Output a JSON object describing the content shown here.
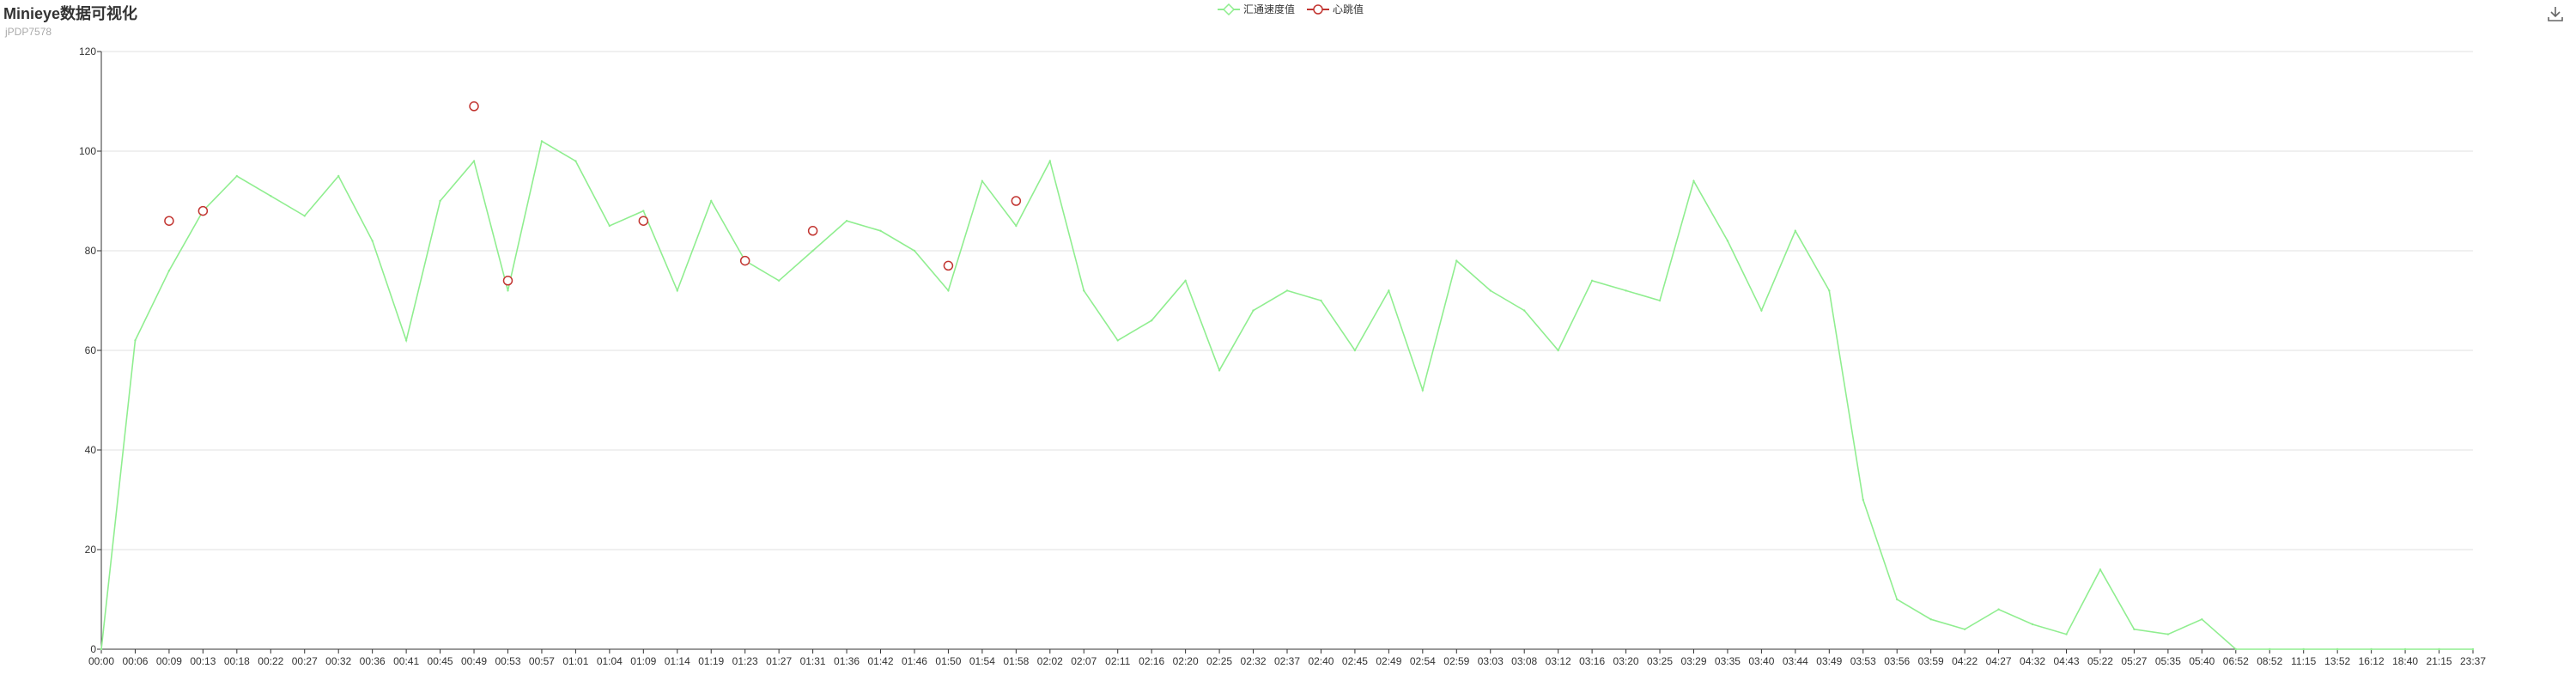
{
  "header": {
    "title": "Minieye数据可视化",
    "subtitle": "jPDP7578"
  },
  "toolbar": {
    "save_icon": "download-icon"
  },
  "legend": [
    {
      "name": "汇通速度值",
      "color": "#90ee90",
      "icon": "diamond-outline"
    },
    {
      "name": "心跳值",
      "color": "#c23531",
      "icon": "circle-outline"
    }
  ],
  "chart_data": {
    "type": "line",
    "title": "Minieye数据可视化",
    "subtitle": "jPDP7578",
    "ylim": [
      0,
      120
    ],
    "y_ticks": [
      0,
      20,
      40,
      60,
      80,
      100,
      120
    ],
    "grid": true,
    "legend_position": "top-center",
    "x": [
      "00:00",
      "00:06",
      "00:09",
      "00:13",
      "00:18",
      "00:22",
      "00:27",
      "00:32",
      "00:36",
      "00:41",
      "00:45",
      "00:49",
      "00:53",
      "00:57",
      "01:01",
      "01:04",
      "01:09",
      "01:14",
      "01:19",
      "01:23",
      "01:27",
      "01:31",
      "01:36",
      "01:42",
      "01:46",
      "01:50",
      "01:54",
      "01:58",
      "02:02",
      "02:07",
      "02:11",
      "02:16",
      "02:20",
      "02:25",
      "02:32",
      "02:37",
      "02:40",
      "02:45",
      "02:49",
      "02:54",
      "02:59",
      "03:03",
      "03:08",
      "03:12",
      "03:16",
      "03:20",
      "03:25",
      "03:29",
      "03:35",
      "03:40",
      "03:44",
      "03:49",
      "03:53",
      "03:56",
      "03:59",
      "04:22",
      "04:27",
      "04:32",
      "04:43",
      "05:22",
      "05:27",
      "05:35",
      "05:40",
      "06:52",
      "08:52",
      "11:15",
      "13:52",
      "16:12",
      "18:40",
      "21:15",
      "23:37"
    ],
    "series": [
      {
        "name": "汇通速度值",
        "color": "#90ee90",
        "values": [
          0,
          62,
          76,
          88,
          95,
          91,
          87,
          95,
          82,
          62,
          90,
          98,
          72,
          102,
          98,
          85,
          88,
          72,
          90,
          78,
          74,
          80,
          86,
          84,
          80,
          72,
          94,
          85,
          98,
          72,
          62,
          66,
          74,
          56,
          68,
          72,
          70,
          60,
          72,
          52,
          78,
          72,
          68,
          60,
          74,
          72,
          70,
          94,
          82,
          68,
          84,
          72,
          30,
          10,
          6,
          4,
          8,
          5,
          3,
          16,
          4,
          3,
          6,
          0,
          0,
          0,
          0,
          0,
          0,
          0,
          0
        ]
      },
      {
        "name": "心跳值",
        "color": "#c23531",
        "points": [
          {
            "x": "00:09",
            "y": 86
          },
          {
            "x": "00:13",
            "y": 88
          },
          {
            "x": "00:49",
            "y": 109
          },
          {
            "x": "00:53",
            "y": 74
          },
          {
            "x": "01:09",
            "y": 86
          },
          {
            "x": "01:23",
            "y": 78
          },
          {
            "x": "01:31",
            "y": 84
          },
          {
            "x": "01:50",
            "y": 77
          },
          {
            "x": "01:58",
            "y": 90
          }
        ]
      }
    ]
  }
}
